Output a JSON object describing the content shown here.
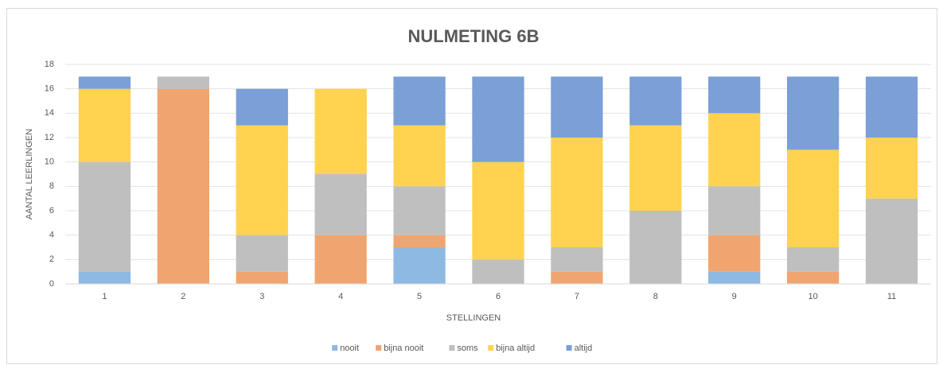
{
  "chart_data": {
    "type": "bar",
    "stacked": true,
    "title": "NULMETING 6B",
    "xlabel": "STELLINGEN",
    "ylabel": "AANTAL LEERLINGEN",
    "categories": [
      "1",
      "2",
      "3",
      "4",
      "5",
      "6",
      "7",
      "8",
      "9",
      "10",
      "11"
    ],
    "series": [
      {
        "name": "nooit",
        "color": "#8db9e3",
        "values": [
          1,
          0,
          0,
          0,
          3,
          0,
          0,
          0,
          1,
          0,
          0
        ]
      },
      {
        "name": "bijna nooit",
        "color": "#f0a570",
        "values": [
          0,
          16,
          1,
          4,
          1,
          0,
          1,
          0,
          3,
          1,
          0
        ]
      },
      {
        "name": "soms",
        "color": "#bfbfbf",
        "values": [
          9,
          1,
          3,
          5,
          4,
          2,
          2,
          6,
          4,
          2,
          7
        ]
      },
      {
        "name": "bijna altijd",
        "color": "#ffd24f",
        "values": [
          6,
          0,
          9,
          7,
          5,
          8,
          9,
          7,
          6,
          8,
          5
        ]
      },
      {
        "name": "altijd",
        "color": "#7b9fd7",
        "values": [
          1,
          0,
          3,
          0,
          4,
          7,
          5,
          4,
          3,
          6,
          5
        ]
      }
    ],
    "ylim": [
      0,
      18
    ],
    "yticks": [
      0,
      2,
      4,
      6,
      8,
      10,
      12,
      14,
      16,
      18
    ],
    "grid": true,
    "legend": "bottom"
  }
}
